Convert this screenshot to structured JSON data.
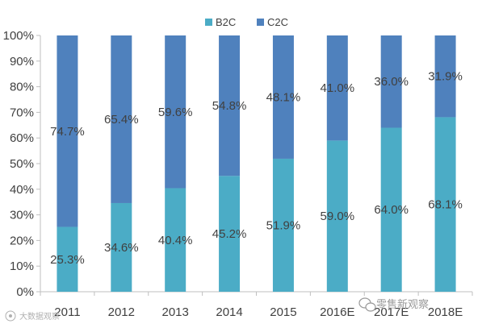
{
  "chart_data": {
    "type": "bar",
    "stacked": true,
    "percent_stacked": true,
    "categories": [
      "2011",
      "2012",
      "2013",
      "2014",
      "2015",
      "2016E",
      "2017E",
      "2018E"
    ],
    "series": [
      {
        "name": "B2C",
        "values": [
          25.3,
          34.6,
          40.4,
          45.2,
          51.9,
          59.0,
          64.0,
          68.1
        ],
        "color": "#4bacc6"
      },
      {
        "name": "C2C",
        "values": [
          74.7,
          65.4,
          59.6,
          54.8,
          48.1,
          41.0,
          36.0,
          31.9
        ],
        "color": "#4f81bd"
      }
    ],
    "data_labels": {
      "B2C": [
        "25.3%",
        "34.6%",
        "40.4%",
        "45.2%",
        "51.9%",
        "59.0%",
        "64.0%",
        "68.1%"
      ],
      "C2C": [
        "74.7%",
        "65.4%",
        "59.6%",
        "54.8%",
        "48.1%",
        "41.0%",
        "36.0%",
        "31.9%"
      ]
    },
    "ylim": [
      0,
      100
    ],
    "yticks": [
      "0%",
      "10%",
      "20%",
      "30%",
      "40%",
      "50%",
      "60%",
      "70%",
      "80%",
      "90%",
      "100%"
    ],
    "legend_position": "top",
    "grid": false,
    "title": "",
    "xlabel": "",
    "ylabel": ""
  },
  "watermark": {
    "right_text": "零售新观察",
    "left_text": "大数据观察"
  },
  "colors": {
    "axis": "#bfbfbf",
    "text": "#404040"
  }
}
